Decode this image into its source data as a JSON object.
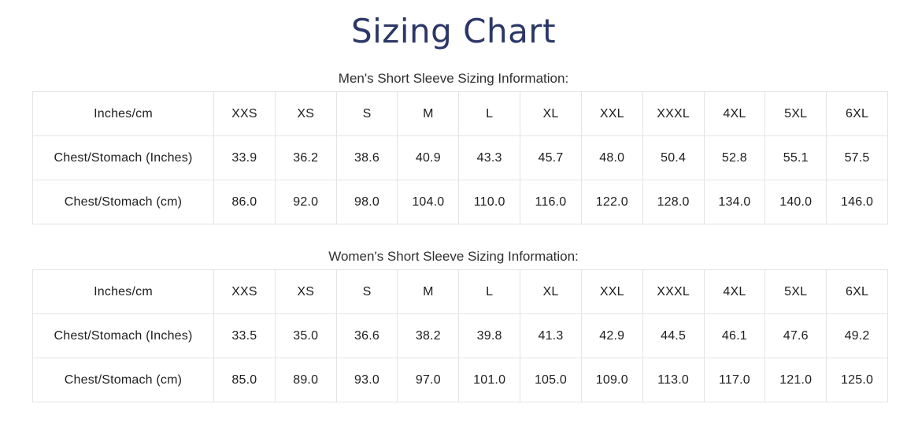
{
  "page": {
    "title": "Sizing Chart"
  },
  "colors": {
    "title": "#2b3767",
    "table_border": "#e4e4e4",
    "table_text": "#1e1e1e",
    "subtitle_text": "#2f2f2f",
    "background": "#ffffff"
  },
  "tables": [
    {
      "subtitle": "Men's Short Sleeve Sizing Information:",
      "header": [
        "Inches/cm",
        "XXS",
        "XS",
        "S",
        "M",
        "L",
        "XL",
        "XXL",
        "XXXL",
        "4XL",
        "5XL",
        "6XL"
      ],
      "rows": [
        [
          "Chest/Stomach (Inches)",
          "33.9",
          "36.2",
          "38.6",
          "40.9",
          "43.3",
          "45.7",
          "48.0",
          "50.4",
          "52.8",
          "55.1",
          "57.5"
        ],
        [
          "Chest/Stomach (cm)",
          "86.0",
          "92.0",
          "98.0",
          "104.0",
          "110.0",
          "116.0",
          "122.0",
          "128.0",
          "134.0",
          "140.0",
          "146.0"
        ]
      ]
    },
    {
      "subtitle": "Women's Short Sleeve Sizing Information:",
      "header": [
        "Inches/cm",
        "XXS",
        "XS",
        "S",
        "M",
        "L",
        "XL",
        "XXL",
        "XXXL",
        "4XL",
        "5XL",
        "6XL"
      ],
      "rows": [
        [
          "Chest/Stomach (Inches)",
          "33.5",
          "35.0",
          "36.6",
          "38.2",
          "39.8",
          "41.3",
          "42.9",
          "44.5",
          "46.1",
          "47.6",
          "49.2"
        ],
        [
          "Chest/Stomach (cm)",
          "85.0",
          "89.0",
          "93.0",
          "97.0",
          "101.0",
          "105.0",
          "109.0",
          "113.0",
          "117.0",
          "121.0",
          "125.0"
        ]
      ]
    }
  ]
}
